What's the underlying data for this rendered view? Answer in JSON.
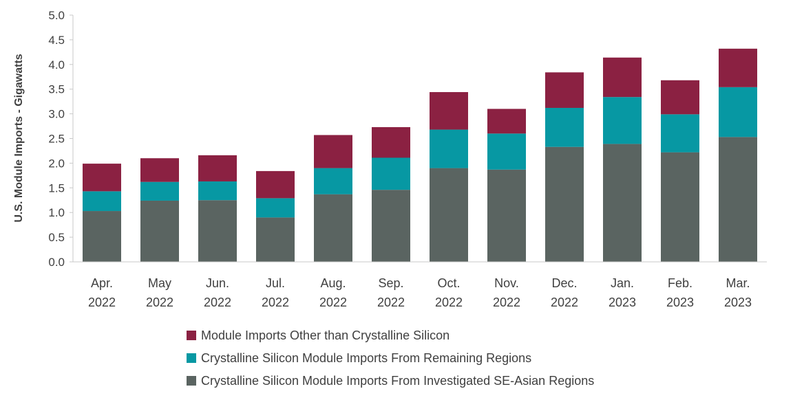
{
  "chart_data": {
    "type": "bar",
    "stacked": true,
    "ylabel": "U.S. Module Imports - Gigawatts",
    "ylim": [
      0,
      5.0
    ],
    "yticks": [
      "0.0",
      "0.5",
      "1.0",
      "1.5",
      "2.0",
      "2.5",
      "3.0",
      "3.5",
      "4.0",
      "4.5",
      "5.0"
    ],
    "grid": false,
    "legend_position": "bottom",
    "categories": [
      [
        "Apr.",
        "2022"
      ],
      [
        "May",
        "2022"
      ],
      [
        "Jun.",
        "2022"
      ],
      [
        "Jul.",
        "2022"
      ],
      [
        "Aug.",
        "2022"
      ],
      [
        "Sep.",
        "2022"
      ],
      [
        "Oct.",
        "2022"
      ],
      [
        "Nov.",
        "2022"
      ],
      [
        "Dec.",
        "2022"
      ],
      [
        "Jan.",
        "2023"
      ],
      [
        "Feb.",
        "2023"
      ],
      [
        "Mar.",
        "2023"
      ]
    ],
    "series": [
      {
        "name": "Crystalline Silicon Module Imports From Investigated SE-Asian Regions",
        "color": "#5a6461",
        "values": [
          1.03,
          1.24,
          1.25,
          0.9,
          1.37,
          1.46,
          1.9,
          1.87,
          2.33,
          2.39,
          2.22,
          2.53
        ]
      },
      {
        "name": "Crystalline Silicon Module Imports From Remaining Regions",
        "color": "#0798a3",
        "values": [
          0.4,
          0.38,
          0.38,
          0.39,
          0.53,
          0.65,
          0.78,
          0.73,
          0.79,
          0.95,
          0.77,
          1.01
        ]
      },
      {
        "name": "Module Imports Other than Crystalline Silicon",
        "color": "#8b2142",
        "values": [
          0.56,
          0.48,
          0.53,
          0.55,
          0.67,
          0.62,
          0.76,
          0.5,
          0.72,
          0.8,
          0.69,
          0.78
        ]
      }
    ],
    "legend_order": [
      2,
      1,
      0
    ]
  }
}
